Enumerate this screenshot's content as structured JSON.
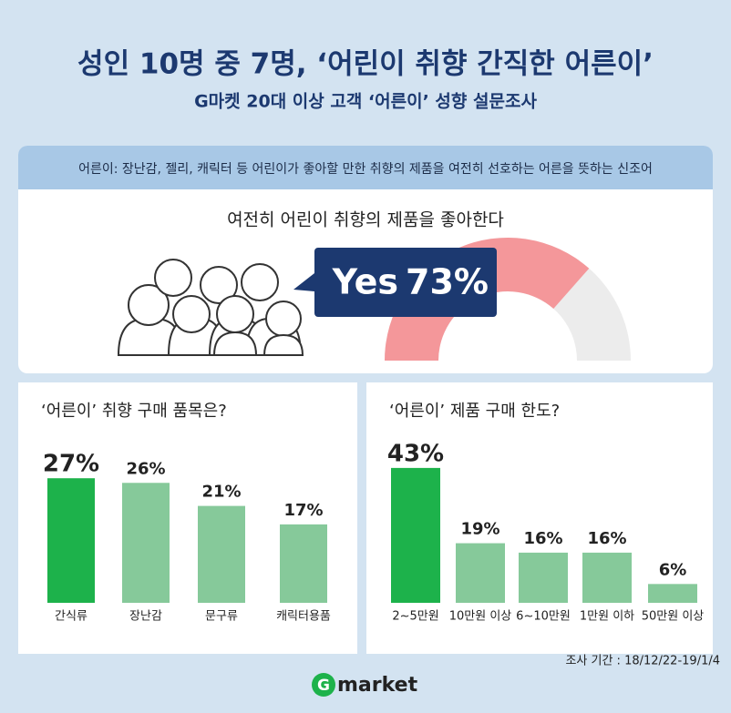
{
  "title": "성인 10명 중 7명, ‘어린이 취향 간직한 어른이’",
  "subtitle": "G마켓 20대 이상 고객 ‘어른이’ 성향 설문조사",
  "definition": "어른이: 장난감, 젤리, 캐릭터 등 어린이가 좋아할 만한 취향의 제품을 여전히 선호하는 어른을 뜻하는 신조어",
  "survey_period": "조사 기간 : 18/12/22-19/1/4",
  "logo": {
    "mark": "G",
    "text": "market"
  },
  "chart_data": [
    {
      "type": "gauge",
      "title": "여전히 어린이 취향의 제품을 좋아한다",
      "label": "Yes",
      "values": [
        73
      ],
      "value_labels": [
        "73%"
      ],
      "ylim": [
        0,
        100
      ],
      "color": "#f4979a",
      "track_color": "#ececec"
    },
    {
      "type": "bar",
      "title": "‘어른이’ 취향 구매 품목은?",
      "categories": [
        "간식류",
        "장난감",
        "문구류",
        "캐릭터용품"
      ],
      "values": [
        27,
        26,
        21,
        17
      ],
      "value_labels": [
        "27%",
        "26%",
        "21%",
        "17%"
      ],
      "colors": [
        "#1db24b",
        "#86c99a",
        "#86c99a",
        "#86c99a"
      ],
      "ylim": [
        0,
        30
      ]
    },
    {
      "type": "bar",
      "title": "‘어른이’ 제품 구매 한도?",
      "categories": [
        "2~5만원",
        "10만원 이상",
        "6~10만원",
        "1만원 이하",
        "50만원 이상"
      ],
      "values": [
        43,
        19,
        16,
        16,
        6
      ],
      "value_labels": [
        "43%",
        "19%",
        "16%",
        "16%",
        "6%"
      ],
      "colors": [
        "#1db24b",
        "#86c99a",
        "#86c99a",
        "#86c99a",
        "#86c99a"
      ],
      "ylim": [
        0,
        45
      ]
    }
  ]
}
